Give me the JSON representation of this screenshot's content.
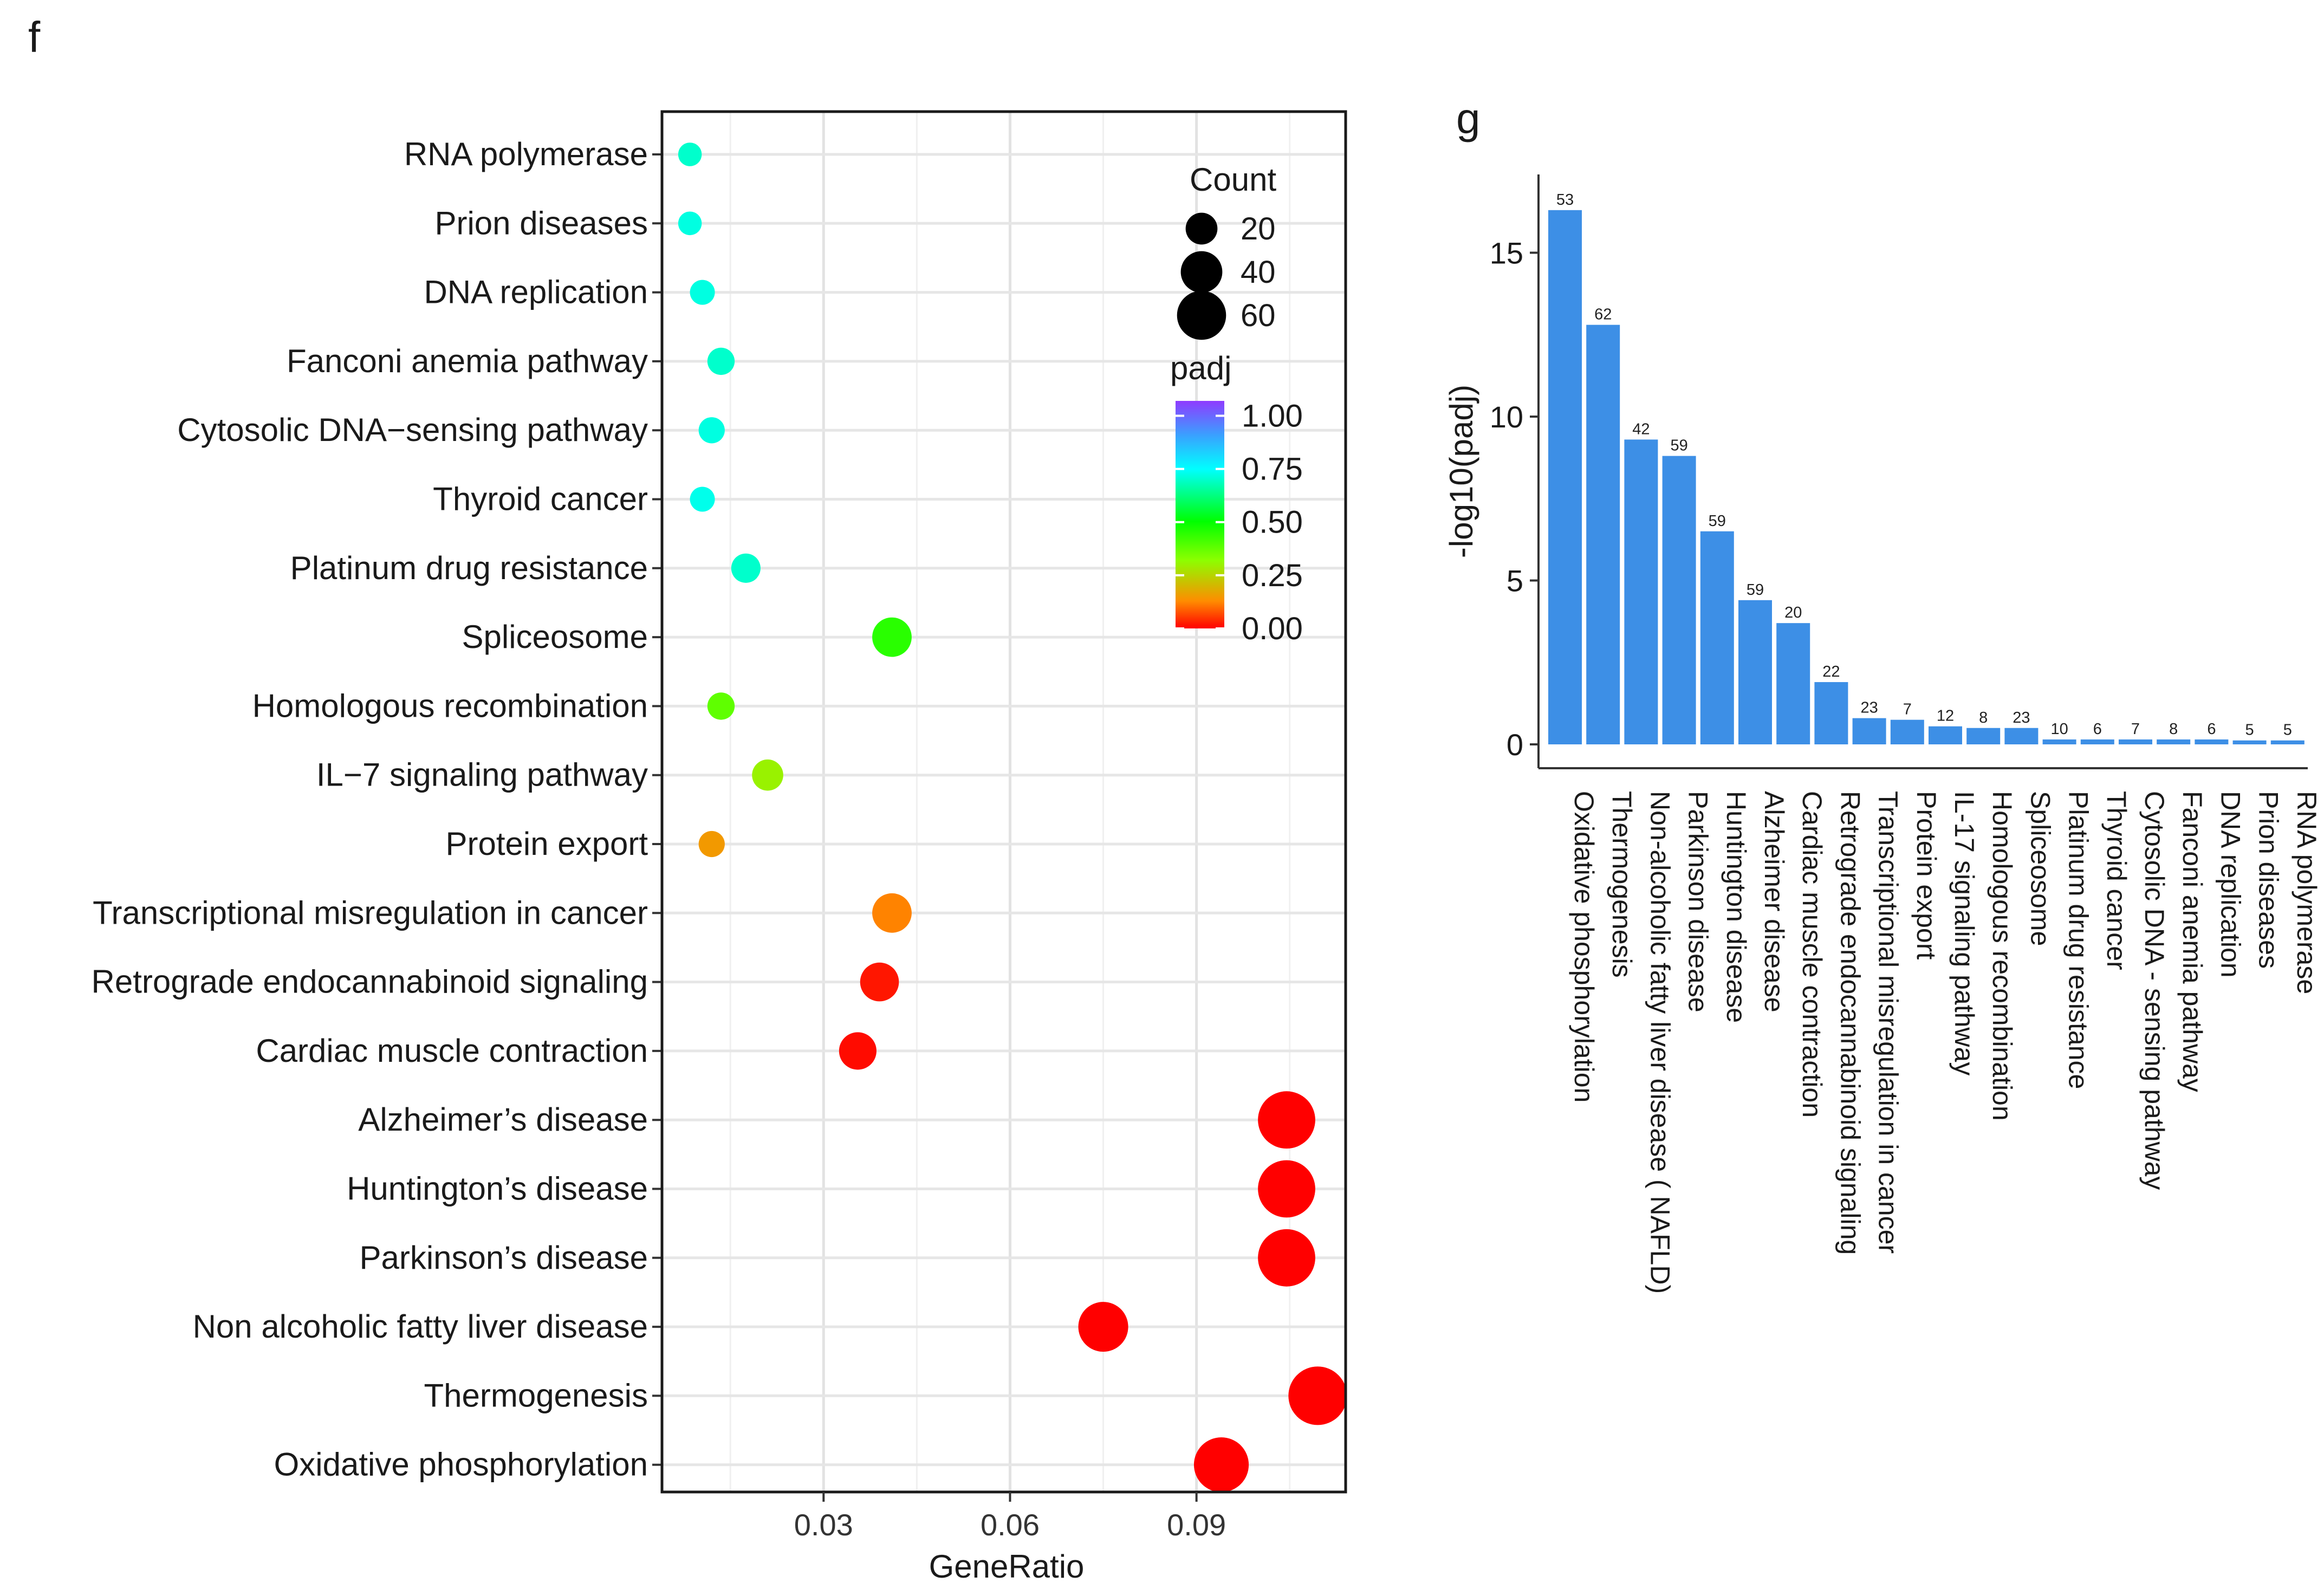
{
  "panels": {
    "f": "f",
    "g": "g"
  },
  "chart_data": [
    {
      "type": "scatter",
      "subtype": "dot-plot",
      "panel": "f",
      "title": "",
      "xlabel": "GeneRatio",
      "ylabel": "",
      "xlim": [
        0.004,
        0.114
      ],
      "xticks": [
        0.03,
        0.06,
        0.09
      ],
      "xtick_labels": [
        "0.03",
        "0.06",
        "0.09"
      ],
      "grid": true,
      "categories": [
        "RNA polymerase",
        "Prion diseases",
        "DNA replication",
        "Fanconi anemia pathway",
        "Cytosolic DNA−sensing pathway",
        "Thyroid cancer",
        "Platinum drug resistance",
        "Spliceosome",
        "Homologous recombination",
        "IL−7 signaling pathway",
        "Protein export",
        "Transcriptional misregulation in cancer",
        "Retrograde endocannabinoid signaling",
        "Cardiac muscle contraction",
        "Alzheimer’s disease",
        "Huntington’s disease",
        "Parkinson’s disease",
        "Non alcoholic fatty liver disease",
        "Thermogenesis",
        "Oxidative phosphorylation"
      ],
      "gene_ratio": [
        0.0085,
        0.0085,
        0.0105,
        0.0135,
        0.012,
        0.0105,
        0.0175,
        0.041,
        0.0135,
        0.021,
        0.012,
        0.041,
        0.039,
        0.0355,
        0.1045,
        0.1045,
        0.1045,
        0.075,
        0.1095,
        0.094
      ],
      "count": [
        5,
        5,
        6,
        8,
        7,
        6,
        10,
        23,
        8,
        12,
        7,
        23,
        22,
        20,
        59,
        59,
        59,
        42,
        62,
        53
      ],
      "padj": [
        0.7,
        0.72,
        0.72,
        0.7,
        0.72,
        0.73,
        0.7,
        0.45,
        0.38,
        0.3,
        0.15,
        0.12,
        0.02,
        0.01,
        0.0,
        0.0,
        0.0,
        0.0,
        0.0,
        0.0
      ],
      "legend": {
        "position": "top-right",
        "size_title": "Count",
        "size_levels": [
          20,
          40,
          60
        ],
        "size_labels": [
          "20",
          "40",
          "60"
        ],
        "color_title": "padj",
        "color_ticks": [
          1.0,
          0.75,
          0.5,
          0.25,
          0.0
        ],
        "color_tick_labels": [
          "1.00",
          "0.75",
          "0.50",
          "0.25",
          "0.00"
        ],
        "color_range": [
          0,
          1.07
        ]
      },
      "colors": [
        "#ff0000",
        "#ff8c00",
        "#8cff00",
        "#00ff00",
        "#00ffff",
        "#3aa0ff",
        "#8f3bff"
      ]
    },
    {
      "type": "bar",
      "panel": "g",
      "title": "",
      "xlabel": "",
      "ylabel": "-log10(padj)",
      "ylim": [
        -0.8,
        16.8
      ],
      "yticks": [
        0,
        5,
        10,
        15
      ],
      "ytick_labels": [
        "0",
        "5",
        "10",
        "15"
      ],
      "bar_color": "#3d8fe6",
      "categories": [
        "Oxidative phosphorylation",
        "Thermogenesis",
        "Non-alcoholic fatty liver disease ( NAFLD)",
        "Parkinson disease",
        "Huntington disease",
        "Alzheimer disease",
        "Cardiac muscle contraction",
        "Retrograde endocannabinoid signaling",
        "Transcriptional misregulation in cancer",
        "Protein export",
        "IL-17 signaling pathway",
        "Homologous recombination",
        "Spliceosome",
        "Platinum drug resistance",
        "Thyroid cancer",
        "Cytosolic DNA - sensing pathway",
        "Fanconi anemia pathway",
        "DNA replication",
        "Prion diseases",
        "RNA polymerase"
      ],
      "values": [
        16.3,
        12.8,
        9.3,
        8.8,
        6.5,
        4.4,
        3.7,
        1.9,
        0.8,
        0.75,
        0.55,
        0.5,
        0.5,
        0.15,
        0.15,
        0.15,
        0.15,
        0.15,
        0.12,
        0.12
      ],
      "data_labels": [
        "53",
        "62",
        "42",
        "59",
        "59",
        "59",
        "20",
        "22",
        "23",
        "7",
        "12",
        "8",
        "23",
        "10",
        "6",
        "7",
        "8",
        "6",
        "5",
        "5"
      ]
    }
  ]
}
